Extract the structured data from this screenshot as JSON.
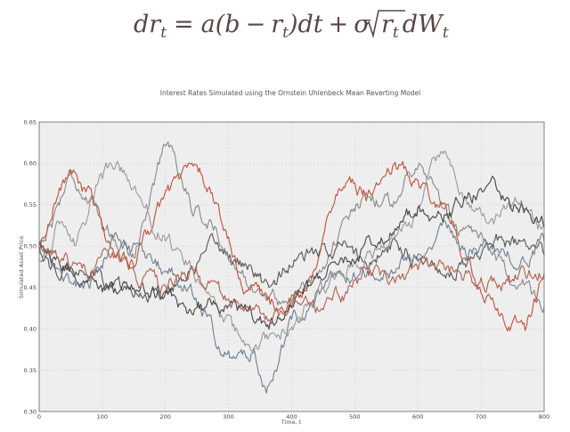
{
  "equation": {
    "lhs": "dr",
    "lhs_sub": "t",
    "eq": "=",
    "a": "a(b",
    "minus": "−",
    "r": "r",
    "r_sub": "t",
    "dt": ")dt",
    "plus": "+",
    "sigma": "σ",
    "sqrt_r": "r",
    "sqrt_sub": "t",
    "dW": "dW",
    "dW_sub": "t"
  },
  "colors": {
    "series": [
      "#555555",
      "#888888",
      "#c2503a",
      "#6f7f92",
      "#999999",
      "#444444",
      "#b06050"
    ],
    "plot_bg": "#eeeeee",
    "grid": "#d4d4d4"
  },
  "chart_data": {
    "type": "line",
    "title": "Interest Rates Simulated using the Ornstein Uhlenbeck Mean Reverting Model",
    "xlabel": "Time, t",
    "ylabel": "Simulated Asset Price",
    "xlim": [
      0,
      800
    ],
    "ylim": [
      0.3,
      0.65
    ],
    "xticks": [
      0,
      100,
      200,
      300,
      400,
      500,
      600,
      700,
      800
    ],
    "yticks": [
      0.3,
      0.35,
      0.4,
      0.45,
      0.5,
      0.55,
      0.6,
      0.65
    ],
    "grid": true,
    "series": [
      {
        "anchors": [
          [
            0,
            0.5
          ],
          [
            30,
            0.46
          ],
          [
            60,
            0.48
          ],
          [
            100,
            0.46
          ],
          [
            150,
            0.44
          ],
          [
            200,
            0.45
          ],
          [
            240,
            0.47
          ],
          [
            280,
            0.5
          ],
          [
            320,
            0.48
          ],
          [
            360,
            0.45
          ],
          [
            400,
            0.48
          ],
          [
            440,
            0.49
          ],
          [
            480,
            0.5
          ],
          [
            520,
            0.48
          ],
          [
            560,
            0.5
          ],
          [
            600,
            0.49
          ],
          [
            640,
            0.47
          ],
          [
            680,
            0.48
          ],
          [
            720,
            0.51
          ],
          [
            760,
            0.5
          ],
          [
            800,
            0.49
          ]
        ]
      },
      {
        "anchors": [
          [
            0,
            0.5
          ],
          [
            20,
            0.53
          ],
          [
            50,
            0.59
          ],
          [
            80,
            0.55
          ],
          [
            110,
            0.52
          ],
          [
            150,
            0.49
          ],
          [
            190,
            0.6
          ],
          [
            205,
            0.63
          ],
          [
            240,
            0.55
          ],
          [
            280,
            0.52
          ],
          [
            320,
            0.46
          ],
          [
            360,
            0.44
          ],
          [
            400,
            0.43
          ],
          [
            440,
            0.47
          ],
          [
            480,
            0.52
          ],
          [
            520,
            0.56
          ],
          [
            560,
            0.55
          ],
          [
            600,
            0.61
          ],
          [
            620,
            0.58
          ],
          [
            660,
            0.52
          ],
          [
            700,
            0.5
          ],
          [
            740,
            0.47
          ],
          [
            780,
            0.44
          ],
          [
            800,
            0.43
          ]
        ]
      },
      {
        "anchors": [
          [
            0,
            0.49
          ],
          [
            25,
            0.56
          ],
          [
            50,
            0.59
          ],
          [
            80,
            0.56
          ],
          [
            110,
            0.5
          ],
          [
            150,
            0.48
          ],
          [
            200,
            0.56
          ],
          [
            230,
            0.59
          ],
          [
            250,
            0.6
          ],
          [
            280,
            0.55
          ],
          [
            320,
            0.46
          ],
          [
            360,
            0.43
          ],
          [
            400,
            0.42
          ],
          [
            440,
            0.48
          ],
          [
            460,
            0.55
          ],
          [
            480,
            0.58
          ],
          [
            520,
            0.56
          ],
          [
            560,
            0.6
          ],
          [
            600,
            0.58
          ],
          [
            640,
            0.55
          ],
          [
            680,
            0.48
          ],
          [
            700,
            0.44
          ],
          [
            740,
            0.41
          ],
          [
            770,
            0.4
          ],
          [
            800,
            0.46
          ]
        ]
      },
      {
        "anchors": [
          [
            0,
            0.5
          ],
          [
            40,
            0.46
          ],
          [
            80,
            0.45
          ],
          [
            120,
            0.51
          ],
          [
            160,
            0.49
          ],
          [
            200,
            0.47
          ],
          [
            240,
            0.45
          ],
          [
            280,
            0.39
          ],
          [
            310,
            0.36
          ],
          [
            340,
            0.37
          ],
          [
            360,
            0.33
          ],
          [
            400,
            0.41
          ],
          [
            440,
            0.44
          ],
          [
            480,
            0.46
          ],
          [
            520,
            0.47
          ],
          [
            560,
            0.46
          ],
          [
            600,
            0.5
          ],
          [
            640,
            0.52
          ],
          [
            680,
            0.49
          ],
          [
            720,
            0.5
          ],
          [
            760,
            0.48
          ],
          [
            800,
            0.5
          ]
        ]
      },
      {
        "anchors": [
          [
            0,
            0.48
          ],
          [
            30,
            0.52
          ],
          [
            60,
            0.5
          ],
          [
            90,
            0.57
          ],
          [
            120,
            0.6
          ],
          [
            150,
            0.57
          ],
          [
            180,
            0.53
          ],
          [
            210,
            0.5
          ],
          [
            240,
            0.48
          ],
          [
            270,
            0.43
          ],
          [
            300,
            0.4
          ],
          [
            330,
            0.38
          ],
          [
            360,
            0.39
          ],
          [
            400,
            0.4
          ],
          [
            440,
            0.44
          ],
          [
            480,
            0.47
          ],
          [
            520,
            0.49
          ],
          [
            560,
            0.51
          ],
          [
            600,
            0.54
          ],
          [
            620,
            0.6
          ],
          [
            640,
            0.62
          ],
          [
            680,
            0.55
          ],
          [
            720,
            0.53
          ],
          [
            760,
            0.55
          ],
          [
            800,
            0.52
          ]
        ]
      },
      {
        "anchors": [
          [
            0,
            0.5
          ],
          [
            40,
            0.47
          ],
          [
            80,
            0.46
          ],
          [
            120,
            0.44
          ],
          [
            160,
            0.45
          ],
          [
            200,
            0.44
          ],
          [
            240,
            0.42
          ],
          [
            280,
            0.43
          ],
          [
            320,
            0.42
          ],
          [
            360,
            0.4
          ],
          [
            400,
            0.43
          ],
          [
            440,
            0.46
          ],
          [
            480,
            0.48
          ],
          [
            520,
            0.5
          ],
          [
            560,
            0.52
          ],
          [
            600,
            0.55
          ],
          [
            640,
            0.53
          ],
          [
            680,
            0.56
          ],
          [
            720,
            0.57
          ],
          [
            760,
            0.55
          ],
          [
            800,
            0.53
          ]
        ]
      },
      {
        "anchors": [
          [
            0,
            0.49
          ],
          [
            40,
            0.48
          ],
          [
            80,
            0.47
          ],
          [
            120,
            0.49
          ],
          [
            160,
            0.46
          ],
          [
            200,
            0.45
          ],
          [
            240,
            0.47
          ],
          [
            280,
            0.44
          ],
          [
            320,
            0.42
          ],
          [
            360,
            0.41
          ],
          [
            400,
            0.44
          ],
          [
            440,
            0.42
          ],
          [
            480,
            0.44
          ],
          [
            520,
            0.47
          ],
          [
            560,
            0.45
          ],
          [
            600,
            0.47
          ],
          [
            640,
            0.48
          ],
          [
            680,
            0.46
          ],
          [
            720,
            0.45
          ],
          [
            760,
            0.46
          ],
          [
            800,
            0.47
          ]
        ]
      }
    ]
  }
}
